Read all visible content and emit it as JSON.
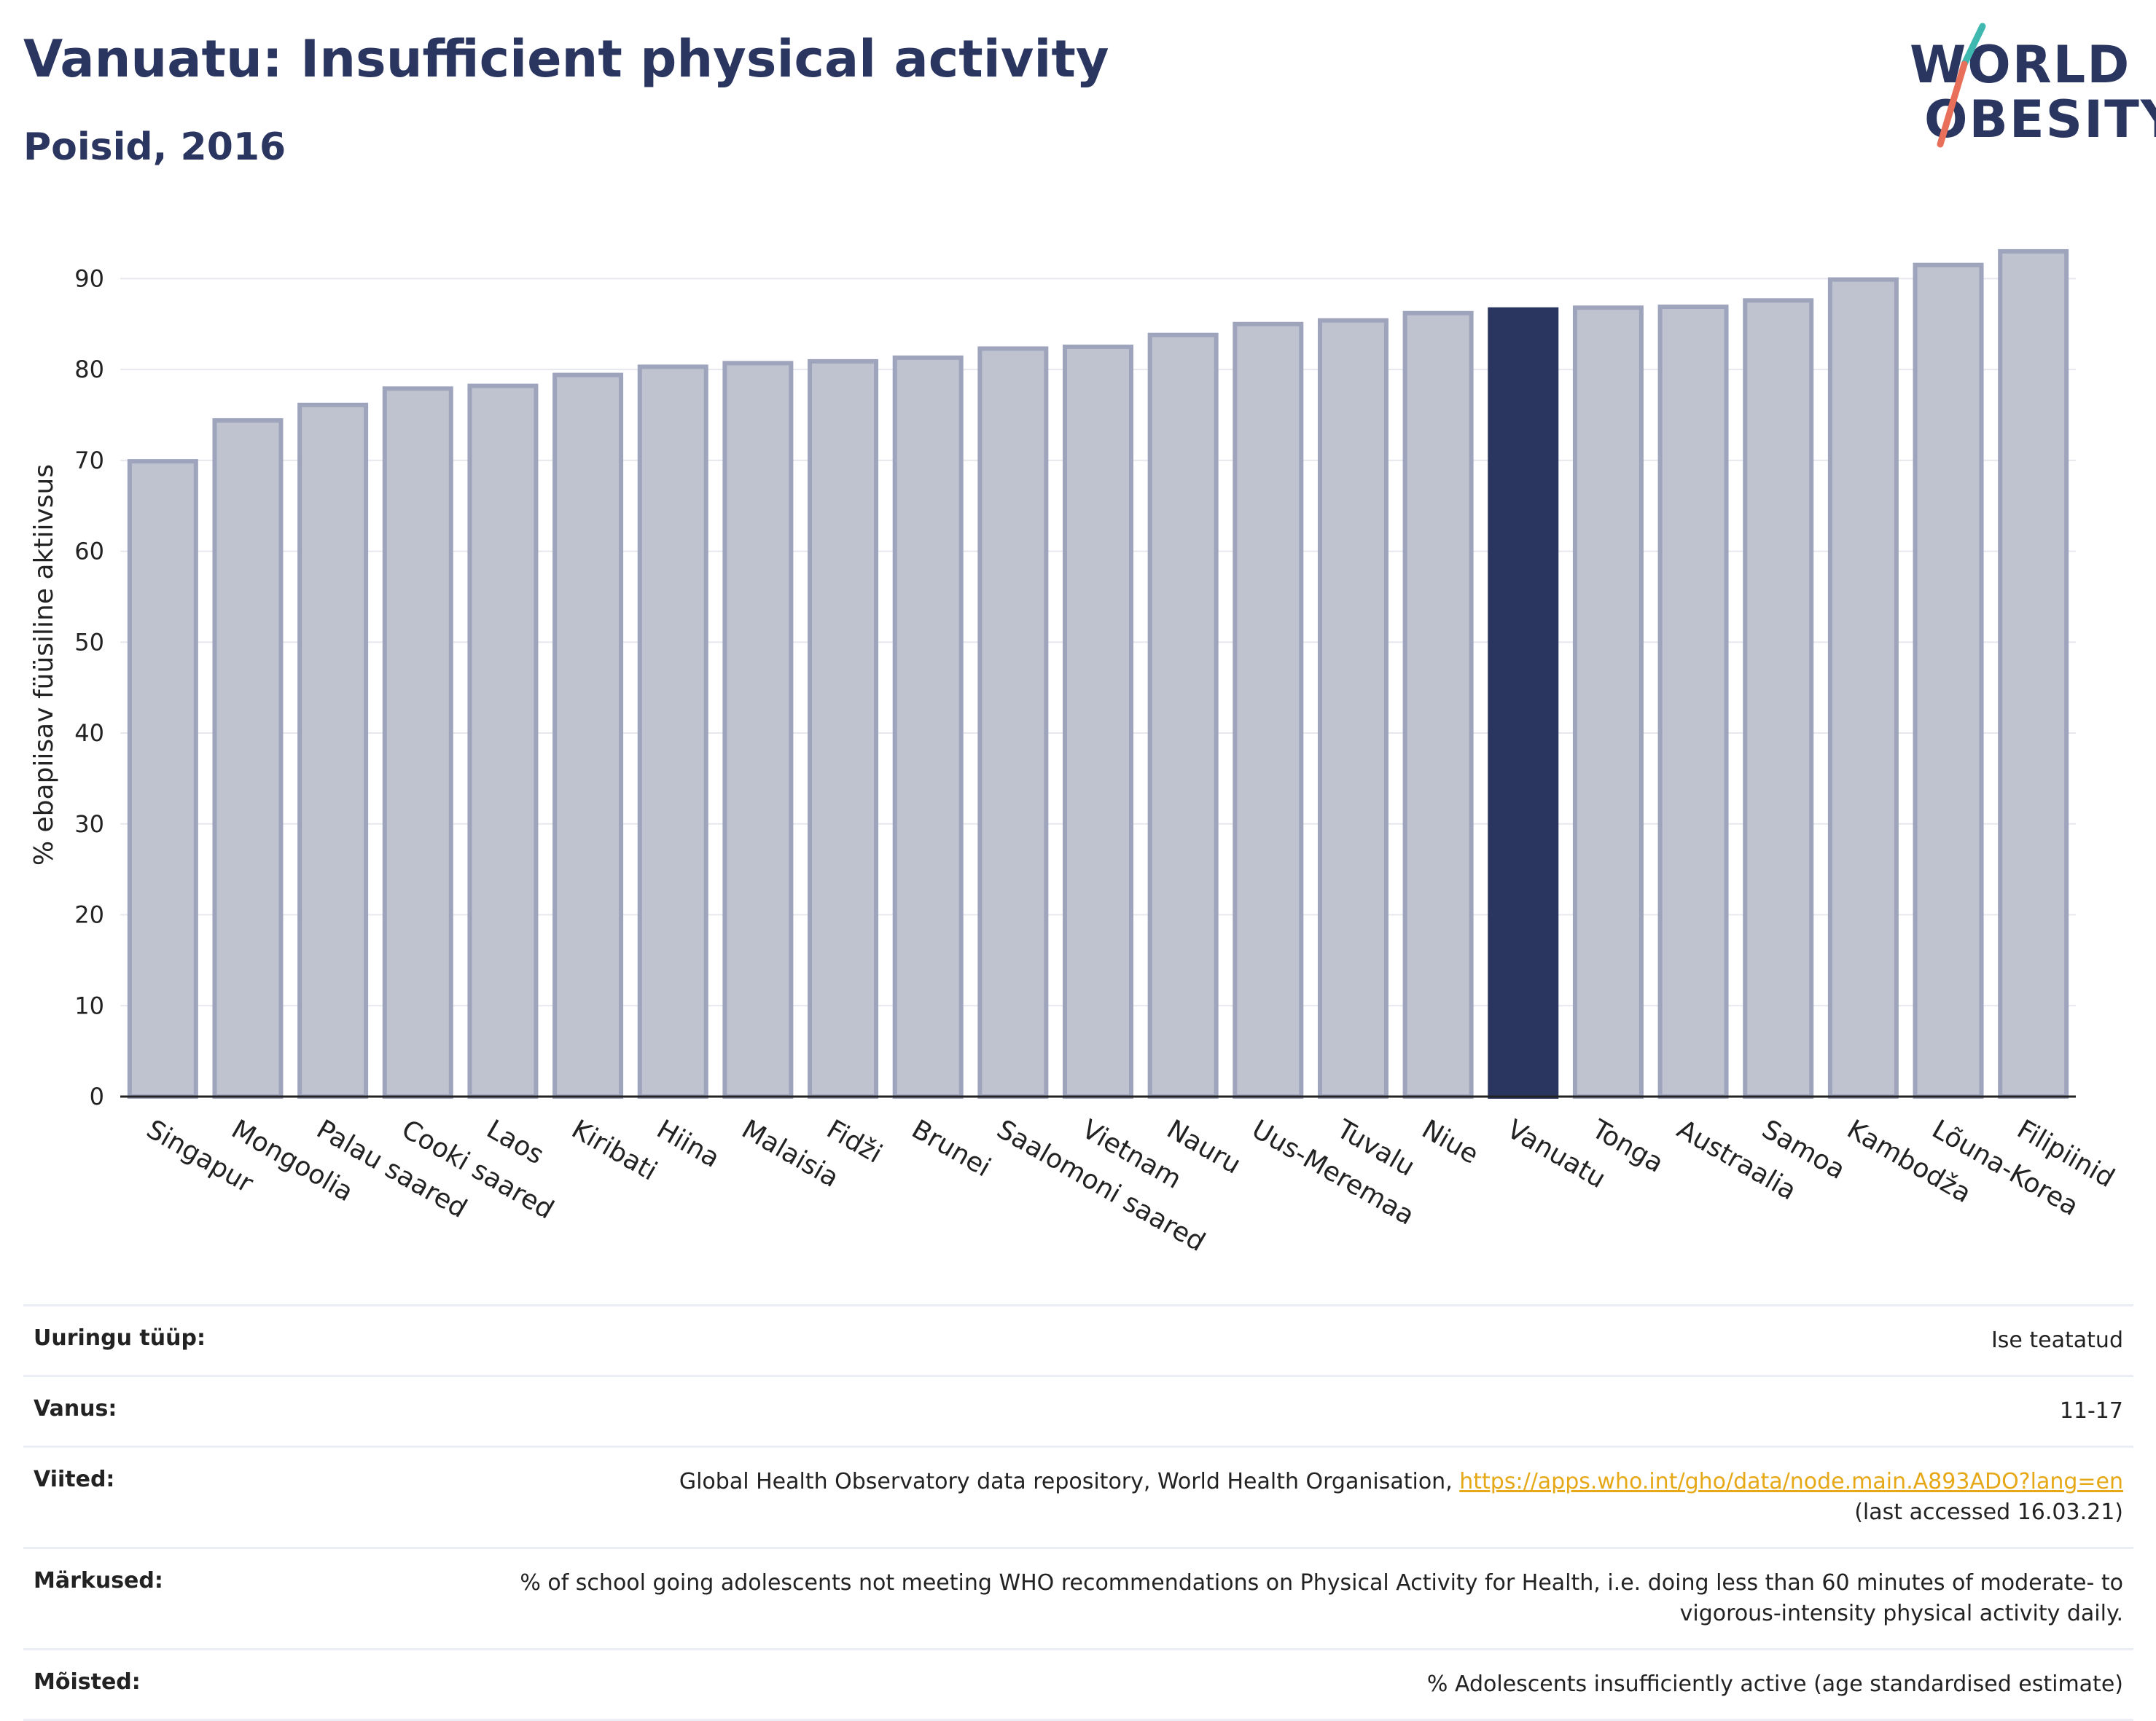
{
  "header": {
    "title": "Vanuatu: Insufficient physical activity",
    "subtitle": "Poisid, 2016"
  },
  "logo": {
    "line1": "WORLD",
    "line2": "OBESITY"
  },
  "chart_data": {
    "type": "bar",
    "ylabel": "% ebapiisav füüsiline aktiivsus",
    "ylim": [
      0,
      95
    ],
    "yticks": [
      0,
      10,
      20,
      30,
      40,
      50,
      60,
      70,
      80,
      90
    ],
    "grid": true,
    "highlight": "Vanuatu",
    "categories": [
      "Singapur",
      "Mongoolia",
      "Palau saared",
      "Cooki saared",
      "Laos",
      "Kiribati",
      "Hiina",
      "Malaisia",
      "Fidži",
      "Brunei",
      "Saalomoni saared",
      "Vietnam",
      "Nauru",
      "Uus-Meremaa",
      "Tuvalu",
      "Niue",
      "Vanuatu",
      "Tonga",
      "Austraalia",
      "Samoa",
      "Kambodža",
      "Lõuna-Korea",
      "Filipiinid"
    ],
    "values": [
      69.9,
      74.4,
      76.1,
      77.9,
      78.2,
      79.4,
      80.3,
      80.7,
      80.9,
      81.3,
      82.3,
      82.5,
      83.8,
      85.0,
      85.4,
      86.2,
      86.6,
      86.8,
      86.9,
      87.6,
      89.9,
      91.5,
      93.0
    ],
    "colors": {
      "bar": "#bfc2cf",
      "bar_edge": "#9ea4bc",
      "highlight": "#2a3560",
      "grid": "#e6e8ee",
      "axis": "#222222"
    }
  },
  "info_table": [
    {
      "label": "Uuringu tüüp:",
      "value": "Ise teatatud"
    },
    {
      "label": "Vanus:",
      "value": "11-17"
    },
    {
      "label": "Viited:",
      "value": "Global Health Observatory data repository, World Health Organisation, ",
      "link": "https://apps.who.int/gho/data/node.main.A893ADO?lang=en",
      "value_after": "(last accessed 16.03.21)"
    },
    {
      "label": "Märkused:",
      "value": "% of school going adolescents not meeting WHO recommendations on Physical Activity for Health, i.e. doing less than 60 minutes of moderate- to vigorous-intensity physical activity daily."
    },
    {
      "label": "Mõisted:",
      "value": "% Adolescents insufficiently active (age standardised estimate)"
    }
  ]
}
